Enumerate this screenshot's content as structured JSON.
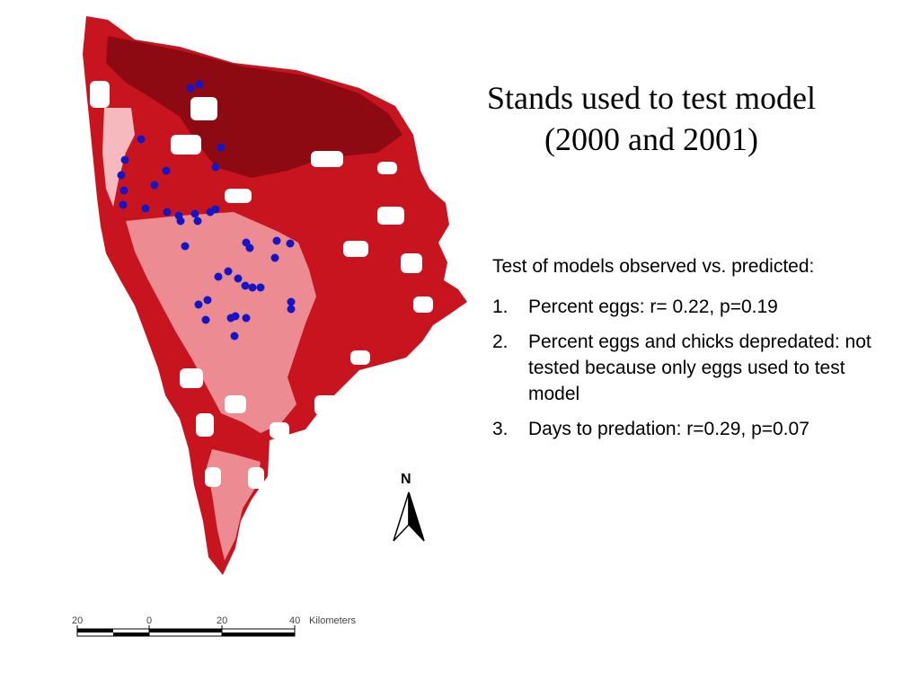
{
  "slide": {
    "title_line1": "Stands used to test model",
    "title_line2": "(2000 and 2001)"
  },
  "findings": {
    "heading": "Test of models observed vs. predicted:",
    "items": [
      {
        "number": "1.",
        "text": "Percent eggs: r= 0.22, p=0.19"
      },
      {
        "number": "2.",
        "text": "Percent eggs and chicks depredated: not tested because only eggs used to test model"
      },
      {
        "number": "3.",
        "text": "Days to predation: r=0.29, p=0.07"
      }
    ]
  },
  "map": {
    "colors": {
      "dark_red": "#8e0a12",
      "red": "#c8141e",
      "mid_pink": "#ec8c92",
      "light_pink": "#f6b9bd",
      "stand_dot": "#1515c4"
    },
    "north_arrow": {
      "label": "N",
      "icon": "north-arrow-icon"
    },
    "scale_bar": {
      "tick_labels": [
        "20",
        "0",
        "20",
        "40"
      ],
      "unit": "Kilometers"
    }
  }
}
